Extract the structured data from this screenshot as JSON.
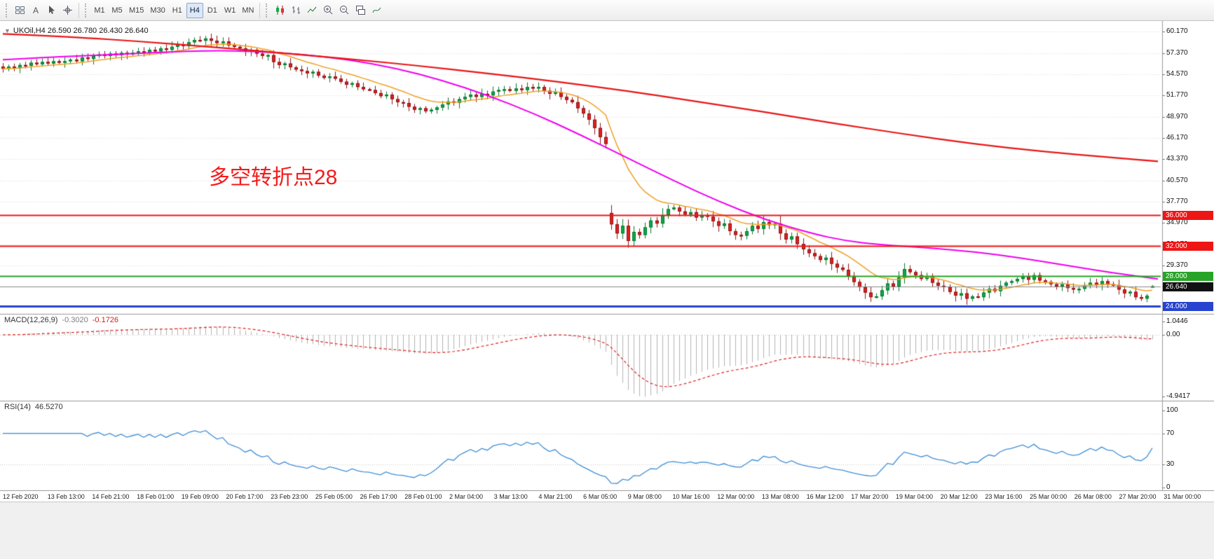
{
  "toolbar": {
    "text_tool_label": "A",
    "timeframes": {
      "items": [
        "M1",
        "M5",
        "M15",
        "M30",
        "H1",
        "H4",
        "D1",
        "W1",
        "MN"
      ],
      "active": "H4"
    },
    "icon_names": [
      "charts-grid",
      "text-tool",
      "cursor",
      "crosshair",
      "candlestick-chart",
      "bar-chart",
      "line-chart",
      "zoom-in",
      "zoom-out",
      "tile-windows",
      "indicators"
    ]
  },
  "icons": {
    "one_click_arrow": "▼"
  },
  "chart_data": [
    {
      "type": "candlestick",
      "symbol": "UKOil,H4",
      "ohlc_text": "26.590 26.780 26.430 26.640",
      "current_bar": {
        "open": 26.59,
        "high": 26.78,
        "low": 26.43,
        "close": 26.64
      },
      "annotation": {
        "text": "多空转折点28",
        "color": "#f21c1c"
      },
      "x_labels": [
        "12 Feb 2020",
        "13 Feb 13:00",
        "14 Feb 21:00",
        "18 Feb 01:00",
        "19 Feb 09:00",
        "20 Feb 17:00",
        "23 Feb 23:00",
        "25 Feb 05:00",
        "26 Feb 17:00",
        "28 Feb 01:00",
        "2 Mar 04:00",
        "3 Mar 13:00",
        "4 Mar 21:00",
        "6 Mar 05:00",
        "9 Mar 08:00",
        "10 Mar 16:00",
        "12 Mar 00:00",
        "13 Mar 08:00",
        "16 Mar 12:00",
        "17 Mar 20:00",
        "19 Mar 04:00",
        "20 Mar 12:00",
        "23 Mar 16:00",
        "25 Mar 00:00",
        "26 Mar 08:00",
        "27 Mar 20:00",
        "31 Mar 00:00"
      ],
      "y_axis": {
        "labels": [
          "60.170",
          "57.370",
          "54.570",
          "51.770",
          "48.970",
          "46.170",
          "43.370",
          "40.570",
          "37.770",
          "34.970",
          "32.170",
          "29.370",
          "26.570"
        ]
      },
      "closes": [
        55.3,
        55.6,
        55.4,
        55.8,
        55.7,
        56.1,
        55.9,
        56.2,
        56.0,
        56.3,
        56.1,
        56.3,
        56.5,
        56.3,
        56.8,
        56.6,
        57.0,
        57.2,
        57.0,
        57.3,
        57.1,
        57.4,
        57.2,
        57.4,
        57.6,
        57.4,
        57.8,
        57.6,
        58.0,
        57.8,
        58.2,
        58.5,
        58.3,
        58.8,
        59.1,
        59.0,
        59.3,
        59.0,
        58.7,
        58.9,
        58.4,
        58.2,
        58.0,
        57.6,
        57.8,
        57.3,
        57.0,
        57.1,
        56.2,
        55.8,
        56.0,
        55.5,
        55.2,
        55.0,
        54.7,
        54.9,
        54.4,
        54.1,
        54.3,
        54.0,
        53.6,
        53.2,
        53.4,
        52.9,
        52.6,
        52.5,
        52.1,
        51.7,
        51.9,
        51.3,
        50.9,
        50.8,
        50.3,
        49.9,
        50.1,
        49.7,
        49.9,
        50.2,
        50.6,
        51.0,
        50.8,
        51.3,
        51.6,
        51.9,
        51.6,
        52.0,
        51.8,
        52.3,
        52.5,
        52.6,
        52.4,
        52.7,
        52.5,
        52.9,
        52.7,
        52.9,
        52.4,
        52.0,
        52.2,
        51.6,
        51.2,
        50.9,
        50.1,
        49.4,
        48.6,
        47.5,
        46.3,
        45.4,
        34.8,
        33.6,
        34.6,
        32.6,
        33.8,
        33.4,
        34.4,
        35.3,
        34.9,
        36.0,
        36.8,
        37.0,
        36.5,
        36.1,
        36.4,
        35.7,
        36.0,
        35.8,
        35.2,
        34.6,
        34.9,
        33.9,
        33.4,
        33.3,
        33.9,
        34.6,
        34.2,
        35.1,
        34.7,
        34.9,
        33.6,
        32.8,
        33.2,
        32.2,
        31.5,
        31.0,
        30.6,
        30.1,
        30.4,
        29.6,
        29.1,
        28.8,
        28.0,
        27.2,
        26.5,
        25.8,
        25.2,
        25.3,
        26.1,
        27.0,
        26.6,
        27.8,
        28.9,
        28.5,
        28.1,
        27.6,
        27.9,
        27.1,
        26.7,
        26.5,
        25.9,
        25.4,
        25.7,
        25.0,
        25.3,
        25.2,
        25.8,
        26.3,
        26.0,
        26.7,
        27.1,
        27.3,
        27.6,
        27.9,
        27.5,
        28.1,
        27.4,
        27.2,
        26.9,
        26.6,
        26.9,
        26.4,
        26.2,
        26.3,
        26.7,
        27.1,
        26.8,
        27.3,
        26.9,
        26.8,
        26.2,
        25.7,
        25.9,
        25.2,
        25.0,
        25.4,
        26.64
      ],
      "overlays": {
        "ma_fast": {
          "type": "ema",
          "period": 13,
          "color": "#efa126"
        },
        "ma_mid": {
          "color": "#f000f0",
          "waypoints": [
            [
              0,
              56.5
            ],
            [
              0.05,
              56.9
            ],
            [
              0.1,
              57.2
            ],
            [
              0.14,
              57.5
            ],
            [
              0.18,
              57.7
            ],
            [
              0.22,
              57.6
            ],
            [
              0.26,
              57.2
            ],
            [
              0.3,
              56.5
            ],
            [
              0.34,
              55.4
            ],
            [
              0.38,
              53.8
            ],
            [
              0.42,
              51.8
            ],
            [
              0.46,
              49.4
            ],
            [
              0.5,
              46.6
            ],
            [
              0.54,
              43.6
            ],
            [
              0.58,
              40.6
            ],
            [
              0.62,
              37.8
            ],
            [
              0.66,
              35.4
            ],
            [
              0.7,
              33.6
            ],
            [
              0.73,
              32.6
            ],
            [
              0.76,
              32.1
            ],
            [
              0.8,
              31.7
            ],
            [
              0.84,
              31.2
            ],
            [
              0.88,
              30.4
            ],
            [
              0.92,
              29.4
            ],
            [
              0.96,
              28.4
            ],
            [
              1,
              27.6
            ]
          ]
        },
        "ma_slow": {
          "color": "#e81717",
          "waypoints": [
            [
              0,
              59.9
            ],
            [
              0.06,
              59.5
            ],
            [
              0.12,
              58.9
            ],
            [
              0.18,
              58.2
            ],
            [
              0.24,
              57.4
            ],
            [
              0.3,
              56.6
            ],
            [
              0.36,
              55.7
            ],
            [
              0.42,
              54.7
            ],
            [
              0.48,
              53.6
            ],
            [
              0.54,
              52.4
            ],
            [
              0.6,
              51.0
            ],
            [
              0.66,
              49.6
            ],
            [
              0.72,
              48.1
            ],
            [
              0.78,
              46.7
            ],
            [
              0.84,
              45.4
            ],
            [
              0.9,
              44.4
            ],
            [
              0.96,
              43.6
            ],
            [
              1,
              43.1
            ]
          ]
        }
      },
      "hlines": [
        {
          "price": 36.0,
          "label": "36.000",
          "color": "#ee1515",
          "width": 2
        },
        {
          "price": 32.0,
          "label": "32.000",
          "color": "#ee1515",
          "width": 2
        },
        {
          "price": 28.0,
          "label": "28.000",
          "color": "#27a427",
          "width": 2
        },
        {
          "price": 24.0,
          "label": "24.000",
          "color": "#2743d0",
          "width": 3
        }
      ],
      "bid": {
        "price": 26.64,
        "label": "26.640",
        "color": "#111111"
      }
    },
    {
      "type": "macd",
      "name": "MACD(12,26,9)",
      "macd_value": "-0.3020",
      "signal_value": "-0.1726",
      "params": {
        "fast": 12,
        "slow": 26,
        "signal": 9
      },
      "axis_labels": [
        "1.0446",
        "0.00",
        "-4.9417"
      ],
      "histogram_color": "#b4b4b4",
      "signal_color": "#e02020"
    },
    {
      "type": "line",
      "name": "RSI(14)",
      "value": "46.5270",
      "period": 14,
      "levels": [
        70,
        30
      ],
      "axis_labels": [
        "100",
        "70",
        "30",
        "0"
      ],
      "color": "#3f8fd6"
    }
  ]
}
